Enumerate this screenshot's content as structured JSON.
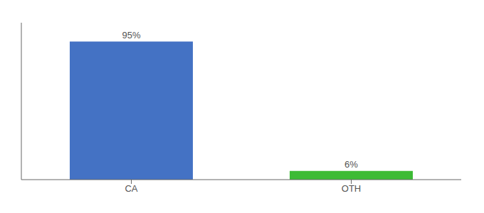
{
  "chart_data": {
    "type": "bar",
    "categories": [
      "CA",
      "OTH"
    ],
    "values": [
      95,
      6
    ],
    "value_labels": [
      "95%",
      "6%"
    ],
    "colors": [
      "#4472c4",
      "#3dbb35"
    ],
    "ylim": [
      0,
      108
    ],
    "tick_labels": "x",
    "data_labels": true
  }
}
